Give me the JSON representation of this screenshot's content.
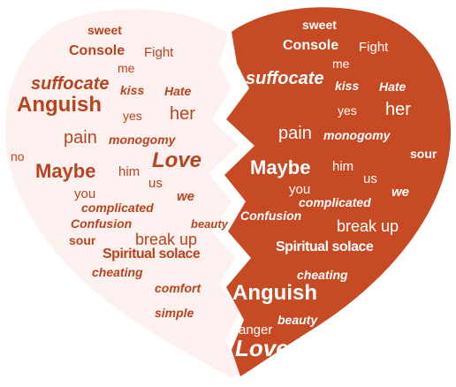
{
  "colors": {
    "left_half": "#fcf1ee",
    "right_half": "#c64a23",
    "left_text": "#b8431f",
    "right_text": "#ffffff"
  },
  "left_words": {
    "sweet": "sweet",
    "console": "Console",
    "fight": "Fight",
    "me": "me",
    "suffocate": "suffocate",
    "kiss": "kiss",
    "hate": "Hate",
    "anguish": "Anguish",
    "yes": "yes",
    "her": "her",
    "pain": "pain",
    "monogomy": "monogomy",
    "no": "no",
    "love": "Love",
    "maybe": "Maybe",
    "him": "him",
    "us": "us",
    "you": "you",
    "we": "we",
    "complicated": "complicated",
    "confusion": "Confusion",
    "beauty": "beauty",
    "sour": "sour",
    "break_up": "break up",
    "spiritual_solace": "Spiritual solace",
    "cheating": "cheating",
    "comfort": "comfort",
    "simple": "simple"
  },
  "right_words": {
    "sweet": "sweet",
    "console": "Console",
    "fight": "Fight",
    "me": "me",
    "suffocate": "suffocate",
    "kiss": "kiss",
    "hate": "Hate",
    "yes": "yes",
    "her": "her",
    "pain": "pain",
    "monogomy": "monogomy",
    "sour": "sour",
    "maybe": "Maybe",
    "him": "him",
    "us": "us",
    "you": "you",
    "we": "we",
    "complicated": "complicated",
    "confusion": "Confusion",
    "break_up": "break up",
    "spiritual_solace": "Spiritual solace",
    "cheating": "cheating",
    "anguish": "Anguish",
    "beauty": "beauty",
    "anger": "anger",
    "love": "Love"
  }
}
